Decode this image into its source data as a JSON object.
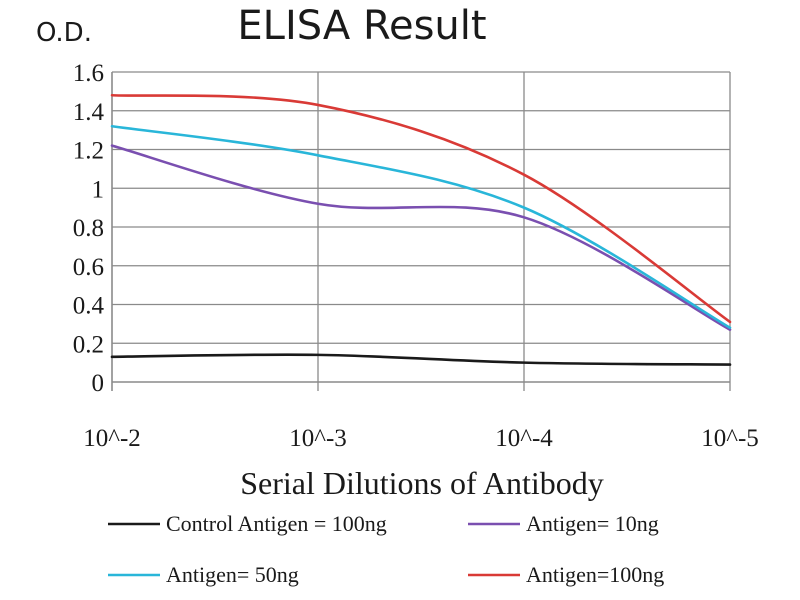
{
  "chart_data": {
    "type": "line",
    "title": "ELISA Result",
    "ylabel": "O.D.",
    "xlabel": "Serial Dilutions of Antibody",
    "x": [
      "10^-2",
      "10^-3",
      "10^-4",
      "10^-5"
    ],
    "ylim": [
      0,
      1.6
    ],
    "yticks": [
      0,
      0.2,
      0.4,
      0.6,
      0.8,
      1,
      1.2,
      1.4,
      1.6
    ],
    "grid": true,
    "legend_position": "bottom",
    "series": [
      {
        "name": "Control Antigen = 100ng",
        "color": "#1a1a1a",
        "values": [
          0.13,
          0.14,
          0.1,
          0.09
        ]
      },
      {
        "name": "Antigen= 10ng",
        "color": "#7a4fb0",
        "values": [
          1.22,
          0.92,
          0.85,
          0.27
        ]
      },
      {
        "name": "Antigen= 50ng",
        "color": "#29b6d9",
        "values": [
          1.32,
          1.17,
          0.9,
          0.28
        ]
      },
      {
        "name": "Antigen=100ng",
        "color": "#d93a36",
        "values": [
          1.48,
          1.43,
          1.07,
          0.31
        ]
      }
    ]
  }
}
